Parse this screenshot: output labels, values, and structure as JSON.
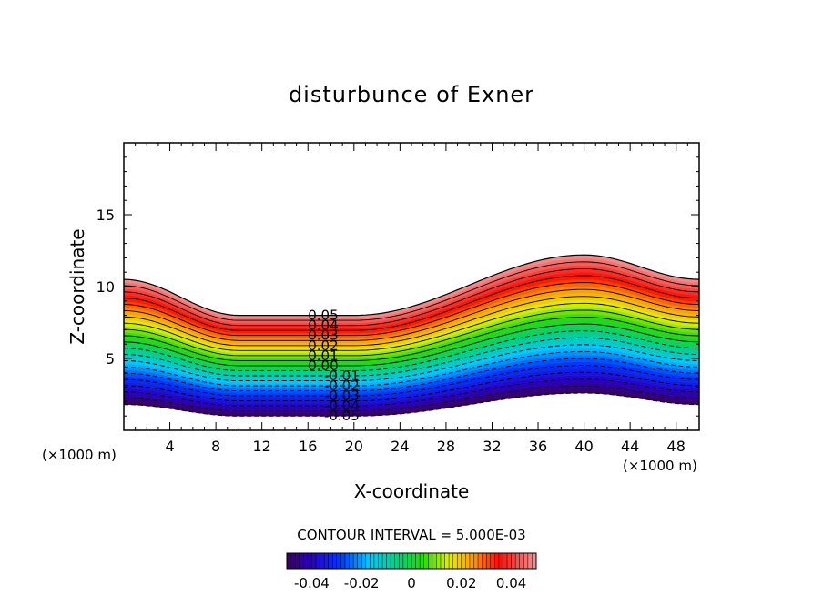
{
  "chart_data": {
    "type": "heatmap",
    "title": "disturbunce of Exner",
    "xlabel": "X-coordinate",
    "ylabel": "Z-coordinate",
    "x_unit_left": "(×1000 m)",
    "x_unit_right": "(×1000 m)",
    "xlim": [
      0,
      50
    ],
    "ylim": [
      0,
      20
    ],
    "x_ticks": [
      4,
      8,
      12,
      16,
      20,
      24,
      28,
      32,
      36,
      40,
      44,
      48
    ],
    "y_ticks": [
      5,
      10,
      15
    ],
    "contour_interval_text": "CONTOUR INTERVAL = 5.000E-03",
    "contour_labels": [
      "0.05",
      "0.04",
      "0.03",
      "0.02",
      "0.01",
      "0.00",
      "-0.01",
      "-0.02",
      "-0.03",
      "-0.04",
      "-0.05"
    ],
    "colorbar": {
      "range": [
        -0.05,
        0.05
      ],
      "ticks": [
        "-0.04",
        "-0.02",
        "0",
        "0.02",
        "0.04"
      ],
      "colormap": "rainbow (purple → blue → cyan → green → yellow → orange → red → pink)"
    },
    "field": {
      "value_range": [
        -0.05,
        0.05
      ],
      "top_boundary_z": {
        "x": [
          0,
          10,
          20,
          40,
          50
        ],
        "z": [
          10.5,
          8.0,
          8.0,
          12.2,
          10.5
        ]
      },
      "bottom_boundary_z": {
        "x": [
          0,
          10,
          20,
          40,
          50
        ],
        "z": [
          1.8,
          1.0,
          1.0,
          2.6,
          1.8
        ]
      },
      "dashed_for_negative": true
    },
    "grid": false
  }
}
